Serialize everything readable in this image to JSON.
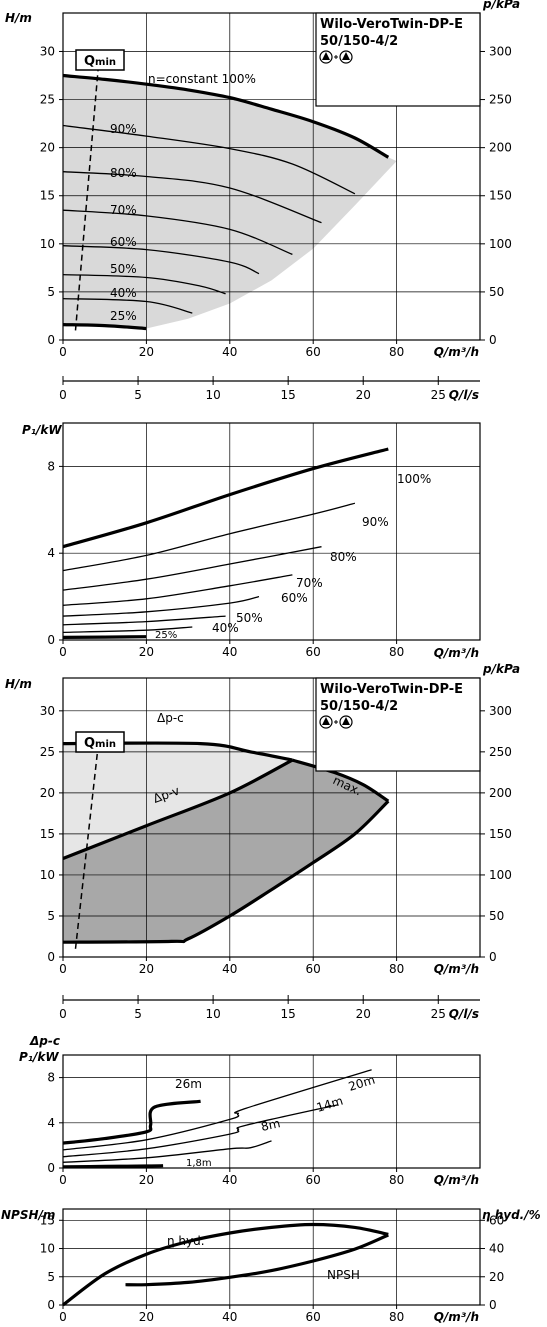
{
  "chart_data": [
    {
      "type": "line",
      "xlabel": "Q/m³/h",
      "ylabel": "H/m",
      "y2label": "p/kPa",
      "xlim": [
        0,
        100
      ],
      "ylim": [
        0,
        34
      ],
      "x_ticks": [
        "0",
        "20",
        "40",
        "60",
        "80"
      ],
      "y_ticks": [
        "0",
        "5",
        "10",
        "15",
        "20",
        "25",
        "30"
      ],
      "y2_ticks": [
        "0",
        "50",
        "100",
        "150",
        "200",
        "250",
        "300"
      ],
      "title_lines": [
        "Wilo-VeroTwin-DP-E",
        "50/150-4/2"
      ],
      "qmin_label": "Qmin",
      "series": [
        {
          "name": "n=constant 100%",
          "x": [
            0,
            10,
            20,
            30,
            40,
            50,
            60,
            70,
            78
          ],
          "y": [
            27.5,
            27.1,
            26.6,
            26.0,
            25.2,
            24.0,
            22.7,
            21.0,
            19.0
          ]
        },
        {
          "name": "90%",
          "x": [
            0,
            20,
            40,
            55,
            70
          ],
          "y": [
            22.3,
            21.2,
            19.9,
            18.3,
            15.2
          ]
        },
        {
          "name": "80%",
          "x": [
            0,
            20,
            40,
            62
          ],
          "y": [
            17.5,
            17.0,
            15.8,
            12.2
          ]
        },
        {
          "name": "70%",
          "x": [
            0,
            20,
            40,
            55
          ],
          "y": [
            13.5,
            12.9,
            11.5,
            8.9
          ]
        },
        {
          "name": "60%",
          "x": [
            0,
            20,
            40,
            47
          ],
          "y": [
            9.8,
            9.4,
            8.1,
            6.9
          ]
        },
        {
          "name": "50%",
          "x": [
            0,
            20,
            33,
            39
          ],
          "y": [
            6.8,
            6.5,
            5.6,
            4.8
          ]
        },
        {
          "name": "40%",
          "x": [
            0,
            20,
            31
          ],
          "y": [
            4.3,
            4.0,
            2.8
          ]
        },
        {
          "name": "25%",
          "x": [
            0,
            10,
            20
          ],
          "y": [
            1.6,
            1.5,
            1.2
          ]
        }
      ],
      "qmin_line": {
        "x": [
          3,
          8.5
        ],
        "y": [
          1,
          28.5
        ]
      },
      "shaded_area": {
        "x": [
          0,
          10,
          20,
          30,
          40,
          50,
          60,
          70,
          78,
          80,
          70,
          60,
          50,
          40,
          30,
          20,
          20,
          0
        ],
        "y": [
          27.5,
          27.1,
          26.6,
          26.0,
          25.2,
          24.0,
          22.7,
          21.0,
          19.0,
          18.6,
          14.0,
          9.5,
          6.2,
          3.8,
          2.2,
          1.2,
          1.2,
          1.6
        ]
      }
    },
    {
      "type": "line",
      "x2label": "Q/l/s",
      "x2_ticks": [
        "0",
        "5",
        "10",
        "15",
        "20",
        "25"
      ],
      "x2lim": [
        0,
        27.78
      ]
    },
    {
      "type": "line",
      "xlabel": "Q/m³/h",
      "ylabel": "P₁/kW",
      "xlim": [
        0,
        100
      ],
      "ylim": [
        0,
        10
      ],
      "x_ticks": [
        "0",
        "20",
        "40",
        "60",
        "80"
      ],
      "y_ticks": [
        "0",
        "4",
        "8"
      ],
      "series": [
        {
          "name": "100%",
          "x": [
            0,
            20,
            40,
            60,
            78
          ],
          "y": [
            4.3,
            5.4,
            6.7,
            7.9,
            8.8
          ]
        },
        {
          "name": "90%",
          "x": [
            0,
            20,
            40,
            60,
            70
          ],
          "y": [
            3.2,
            3.9,
            4.9,
            5.8,
            6.3
          ]
        },
        {
          "name": "80%",
          "x": [
            0,
            20,
            40,
            62
          ],
          "y": [
            2.3,
            2.8,
            3.5,
            4.3
          ]
        },
        {
          "name": "70%",
          "x": [
            0,
            20,
            40,
            55
          ],
          "y": [
            1.6,
            1.9,
            2.5,
            3.0
          ]
        },
        {
          "name": "60%",
          "x": [
            0,
            20,
            40,
            47
          ],
          "y": [
            1.1,
            1.3,
            1.7,
            2.0
          ]
        },
        {
          "name": "50%",
          "x": [
            0,
            20,
            39
          ],
          "y": [
            0.7,
            0.85,
            1.1
          ]
        },
        {
          "name": "40%",
          "x": [
            0,
            20,
            31
          ],
          "y": [
            0.35,
            0.45,
            0.6
          ]
        },
        {
          "name": "25%",
          "x": [
            0,
            20
          ],
          "y": [
            0.12,
            0.15
          ]
        }
      ]
    },
    {
      "type": "line",
      "xlabel": "Q/m³/h",
      "ylabel": "H/m",
      "y2label": "p/kPa",
      "xlim": [
        0,
        100
      ],
      "ylim": [
        0,
        34
      ],
      "x_ticks": [
        "0",
        "20",
        "40",
        "60",
        "80"
      ],
      "y_ticks": [
        "0",
        "5",
        "10",
        "15",
        "20",
        "25",
        "30"
      ],
      "y2_ticks": [
        "0",
        "50",
        "100",
        "150",
        "200",
        "250",
        "300"
      ],
      "title_lines": [
        "Wilo-VeroTwin-DP-E",
        "50/150-4/2"
      ],
      "qmin_label": "Qmin",
      "labels": [
        "Δp-c",
        "Δp-v",
        "max."
      ],
      "series": [
        {
          "name": "Δp-c",
          "x": [
            0,
            33,
            45,
            55
          ],
          "y": [
            26,
            26,
            25,
            24
          ]
        },
        {
          "name": "Δp-v",
          "x": [
            0,
            20,
            40,
            55
          ],
          "y": [
            12,
            16,
            20,
            24
          ]
        },
        {
          "name": "max.",
          "x": [
            55,
            65,
            72,
            78
          ],
          "y": [
            24,
            22.5,
            21,
            19
          ]
        },
        {
          "name": "min",
          "x": [
            0,
            26,
            30,
            40,
            50,
            60,
            70,
            78
          ],
          "y": [
            1.8,
            1.9,
            2.2,
            5,
            8.2,
            11.5,
            15,
            19
          ]
        }
      ],
      "qmin_line": {
        "x": [
          3,
          8.5
        ],
        "y": [
          1,
          26
        ]
      }
    },
    {
      "type": "line",
      "x2label": "Q/l/s",
      "x2_ticks": [
        "0",
        "5",
        "10",
        "15",
        "20",
        "25"
      ],
      "x2lim": [
        0,
        27.78
      ]
    },
    {
      "type": "line",
      "xlabel": "Q/m³/h",
      "ylabel_lines": [
        "Δp-c",
        "P₁/kW"
      ],
      "xlim": [
        0,
        100
      ],
      "ylim": [
        0,
        10
      ],
      "x_ticks": [
        "0",
        "20",
        "40",
        "60",
        "80"
      ],
      "y_ticks": [
        "0",
        "4",
        "8"
      ],
      "series": [
        {
          "name": "26m",
          "x": [
            0,
            10,
            20,
            21,
            22,
            33
          ],
          "y": [
            2.2,
            2.6,
            3.2,
            3.8,
            5.4,
            5.9
          ]
        },
        {
          "name": "20m",
          "x": [
            0,
            20,
            40,
            42,
            44,
            74
          ],
          "y": [
            1.6,
            2.5,
            4.3,
            4.8,
            5.3,
            8.7
          ]
        },
        {
          "name": "14m",
          "x": [
            0,
            20,
            40,
            42,
            44,
            66
          ],
          "y": [
            1.0,
            1.7,
            3.0,
            3.4,
            3.8,
            5.6
          ]
        },
        {
          "name": "8m",
          "x": [
            0,
            20,
            40,
            45,
            50
          ],
          "y": [
            0.5,
            0.9,
            1.7,
            1.8,
            2.4
          ]
        },
        {
          "name": "1,8m",
          "x": [
            0,
            10,
            20,
            24
          ],
          "y": [
            0.1,
            0.14,
            0.18,
            0.2
          ]
        }
      ]
    },
    {
      "type": "line",
      "xlabel": "Q/m³/h",
      "ylabel": "NPSH/m",
      "y2label": "η hyd./%",
      "xlim": [
        0,
        100
      ],
      "ylim": [
        0,
        17
      ],
      "y2lim": [
        0,
        68
      ],
      "x_ticks": [
        "0",
        "20",
        "40",
        "60",
        "80"
      ],
      "y_ticks": [
        "0",
        "5",
        "10",
        "15"
      ],
      "y2_ticks": [
        "0",
        "20",
        "40",
        "60"
      ],
      "series": [
        {
          "name": "η hyd.",
          "axis": "right",
          "x": [
            0,
            10,
            20,
            30,
            40,
            50,
            60,
            70,
            78
          ],
          "y": [
            0,
            22,
            36,
            45,
            51,
            55,
            57,
            55,
            50
          ]
        },
        {
          "name": "NPSH",
          "axis": "left",
          "x": [
            15,
            20,
            30,
            40,
            50,
            60,
            70,
            78
          ],
          "y": [
            3.6,
            3.6,
            4.0,
            4.9,
            6.1,
            7.8,
            9.9,
            12.4
          ]
        }
      ]
    }
  ]
}
